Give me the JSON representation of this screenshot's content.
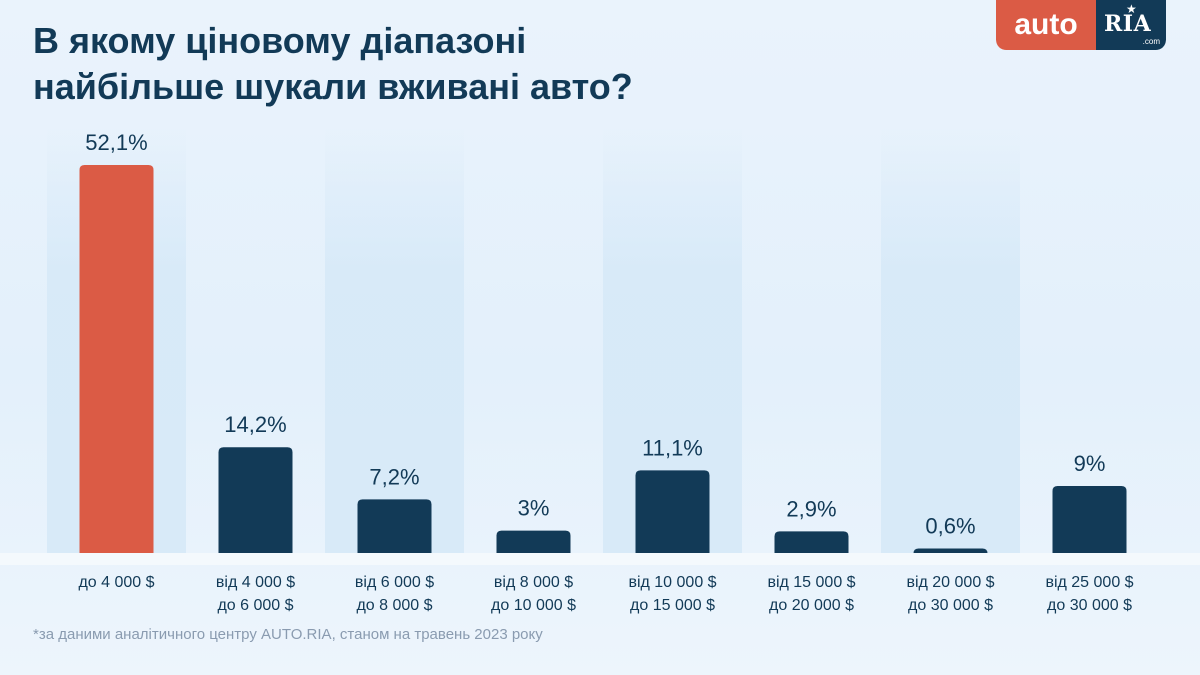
{
  "title": {
    "line1": "В якому ціновому діапазоні",
    "line2": "найбільше шукали вживані авто?"
  },
  "logo": {
    "auto": "auto",
    "ria": "RIA",
    "com": ".com",
    "star": "★"
  },
  "footnote": "*за даними аналітичного центру AUTO.RIA, станом на травень 2023 року",
  "colors": {
    "highlight": "#db5b45",
    "bar": "#123a57",
    "label": "#123a57",
    "band": "#d6e9f8"
  },
  "chart_data": {
    "type": "bar",
    "title": "В якому ціновому діапазоні найбільше шукали вживані авто?",
    "xlabel": "",
    "ylabel": "",
    "ylim": [
      0,
      55
    ],
    "grid": false,
    "legend": "none",
    "categories": [
      [
        "до 4 000 $"
      ],
      [
        "від 4 000 $",
        "до 6 000 $"
      ],
      [
        "від 6 000 $",
        "до 8 000 $"
      ],
      [
        "від 8 000 $",
        "до 10 000 $"
      ],
      [
        "від 10 000 $",
        "до 15 000 $"
      ],
      [
        "від 15 000 $",
        "до 20 000 $"
      ],
      [
        "від 20 000 $",
        "до 30 000 $"
      ],
      [
        "від 25 000 $",
        "до 30 000 $"
      ]
    ],
    "values": [
      52.1,
      14.2,
      7.2,
      3,
      11.1,
      2.9,
      0.6,
      9
    ],
    "value_labels": [
      "52,1%",
      "14,2%",
      "7,2%",
      "3%",
      "11,1%",
      "2,9%",
      "0,6%",
      "9%"
    ],
    "highlight_index": 0
  }
}
